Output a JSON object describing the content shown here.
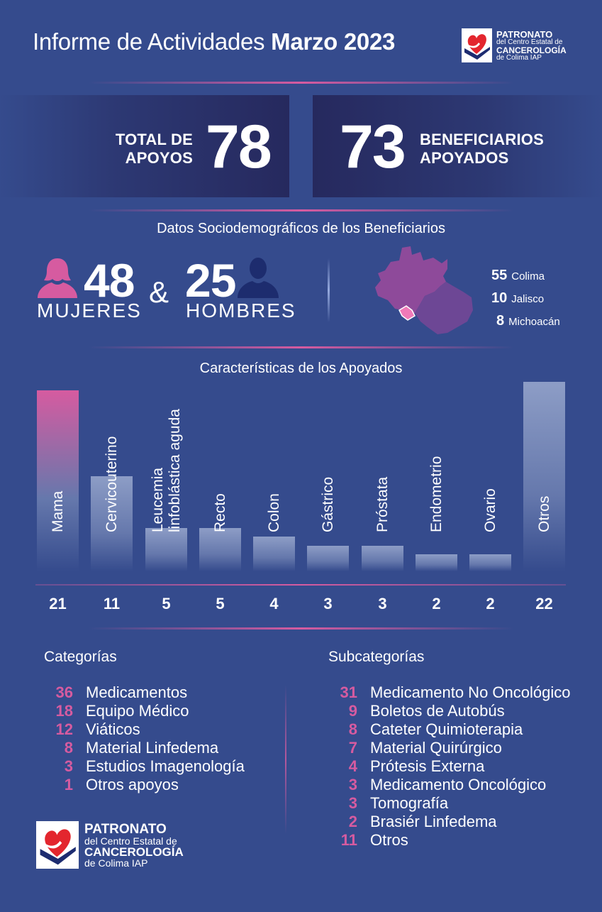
{
  "header": {
    "title_light": "Informe de Actividades ",
    "title_bold": "Marzo 2023"
  },
  "logo": {
    "line1": "PATRONATO",
    "line2": "del Centro Estatal de",
    "line3": "CANCEROLOGÍA",
    "line4": "de Colima IAP"
  },
  "kpis": {
    "total_label_1": "TOTAL DE",
    "total_label_2": "APOYOS",
    "total_value": "78",
    "benef_value": "73",
    "benef_label_1": "BENEFICIARIOS",
    "benef_label_2": "APOYADOS"
  },
  "demographics": {
    "heading": "Datos Sociodemográficos de los Beneficiarios",
    "women_value": "48",
    "women_label": "MUJERES",
    "amp": "&",
    "men_value": "25",
    "men_label": "HOMBRES",
    "states": [
      {
        "count": "55",
        "name": "Colima"
      },
      {
        "count": "10",
        "name": "Jalisco"
      },
      {
        "count": "8",
        "name": "Michoacán"
      }
    ]
  },
  "chart_data": {
    "type": "bar",
    "title": "Características de los Apoyados",
    "categories": [
      "Mama",
      "Cervicouterino",
      "Leucemia linfoblástica aguda",
      "Recto",
      "Colon",
      "Gástrico",
      "Próstata",
      "Endometrio",
      "Ovario",
      "Otros"
    ],
    "values": [
      21,
      11,
      5,
      5,
      4,
      3,
      3,
      2,
      2,
      22
    ],
    "label_lines": [
      [
        "Mama"
      ],
      [
        "Cervicouterino"
      ],
      [
        "Leucemia",
        "linfoblástica aguda"
      ],
      [
        "Recto"
      ],
      [
        "Colon"
      ],
      [
        "Gástrico"
      ],
      [
        "Próstata"
      ],
      [
        "Endometrio"
      ],
      [
        "Ovario"
      ],
      [
        "Otros"
      ]
    ],
    "value_labels": [
      "21",
      "11",
      "5",
      "5",
      "4",
      "3",
      "3",
      "2",
      "2",
      "22"
    ],
    "highlight_color": "#d65ba0",
    "bar_color": "#8d9dc6"
  },
  "categories": {
    "heading": "Categorías",
    "items": [
      {
        "n": "36",
        "label": "Medicamentos"
      },
      {
        "n": "18",
        "label": "Equipo Médico"
      },
      {
        "n": "12",
        "label": "Viáticos"
      },
      {
        "n": "8",
        "label": "Material Linfedema"
      },
      {
        "n": "3",
        "label": "Estudios Imagenología"
      },
      {
        "n": "1",
        "label": "Otros apoyos"
      }
    ]
  },
  "subcategories": {
    "heading": "Subcategorías",
    "items": [
      {
        "n": "31",
        "label": "Medicamento No Oncológico"
      },
      {
        "n": "9",
        "label": "Boletos de Autobús"
      },
      {
        "n": "8",
        "label": "Cateter Quimioterapia"
      },
      {
        "n": "7",
        "label": "Material Quirúrgico"
      },
      {
        "n": "4",
        "label": "Prótesis Externa"
      },
      {
        "n": "3",
        "label": "Medicamento Oncológico"
      },
      {
        "n": "3",
        "label": "Tomografía"
      },
      {
        "n": "2",
        "label": "Brasiér Linfedema"
      },
      {
        "n": "11",
        "label": "Otros"
      }
    ]
  },
  "colors": {
    "background": "#354b8d",
    "accent_pink": "#d65ba0",
    "dark_box": "#26295e",
    "logo_red": "#e3262e"
  }
}
